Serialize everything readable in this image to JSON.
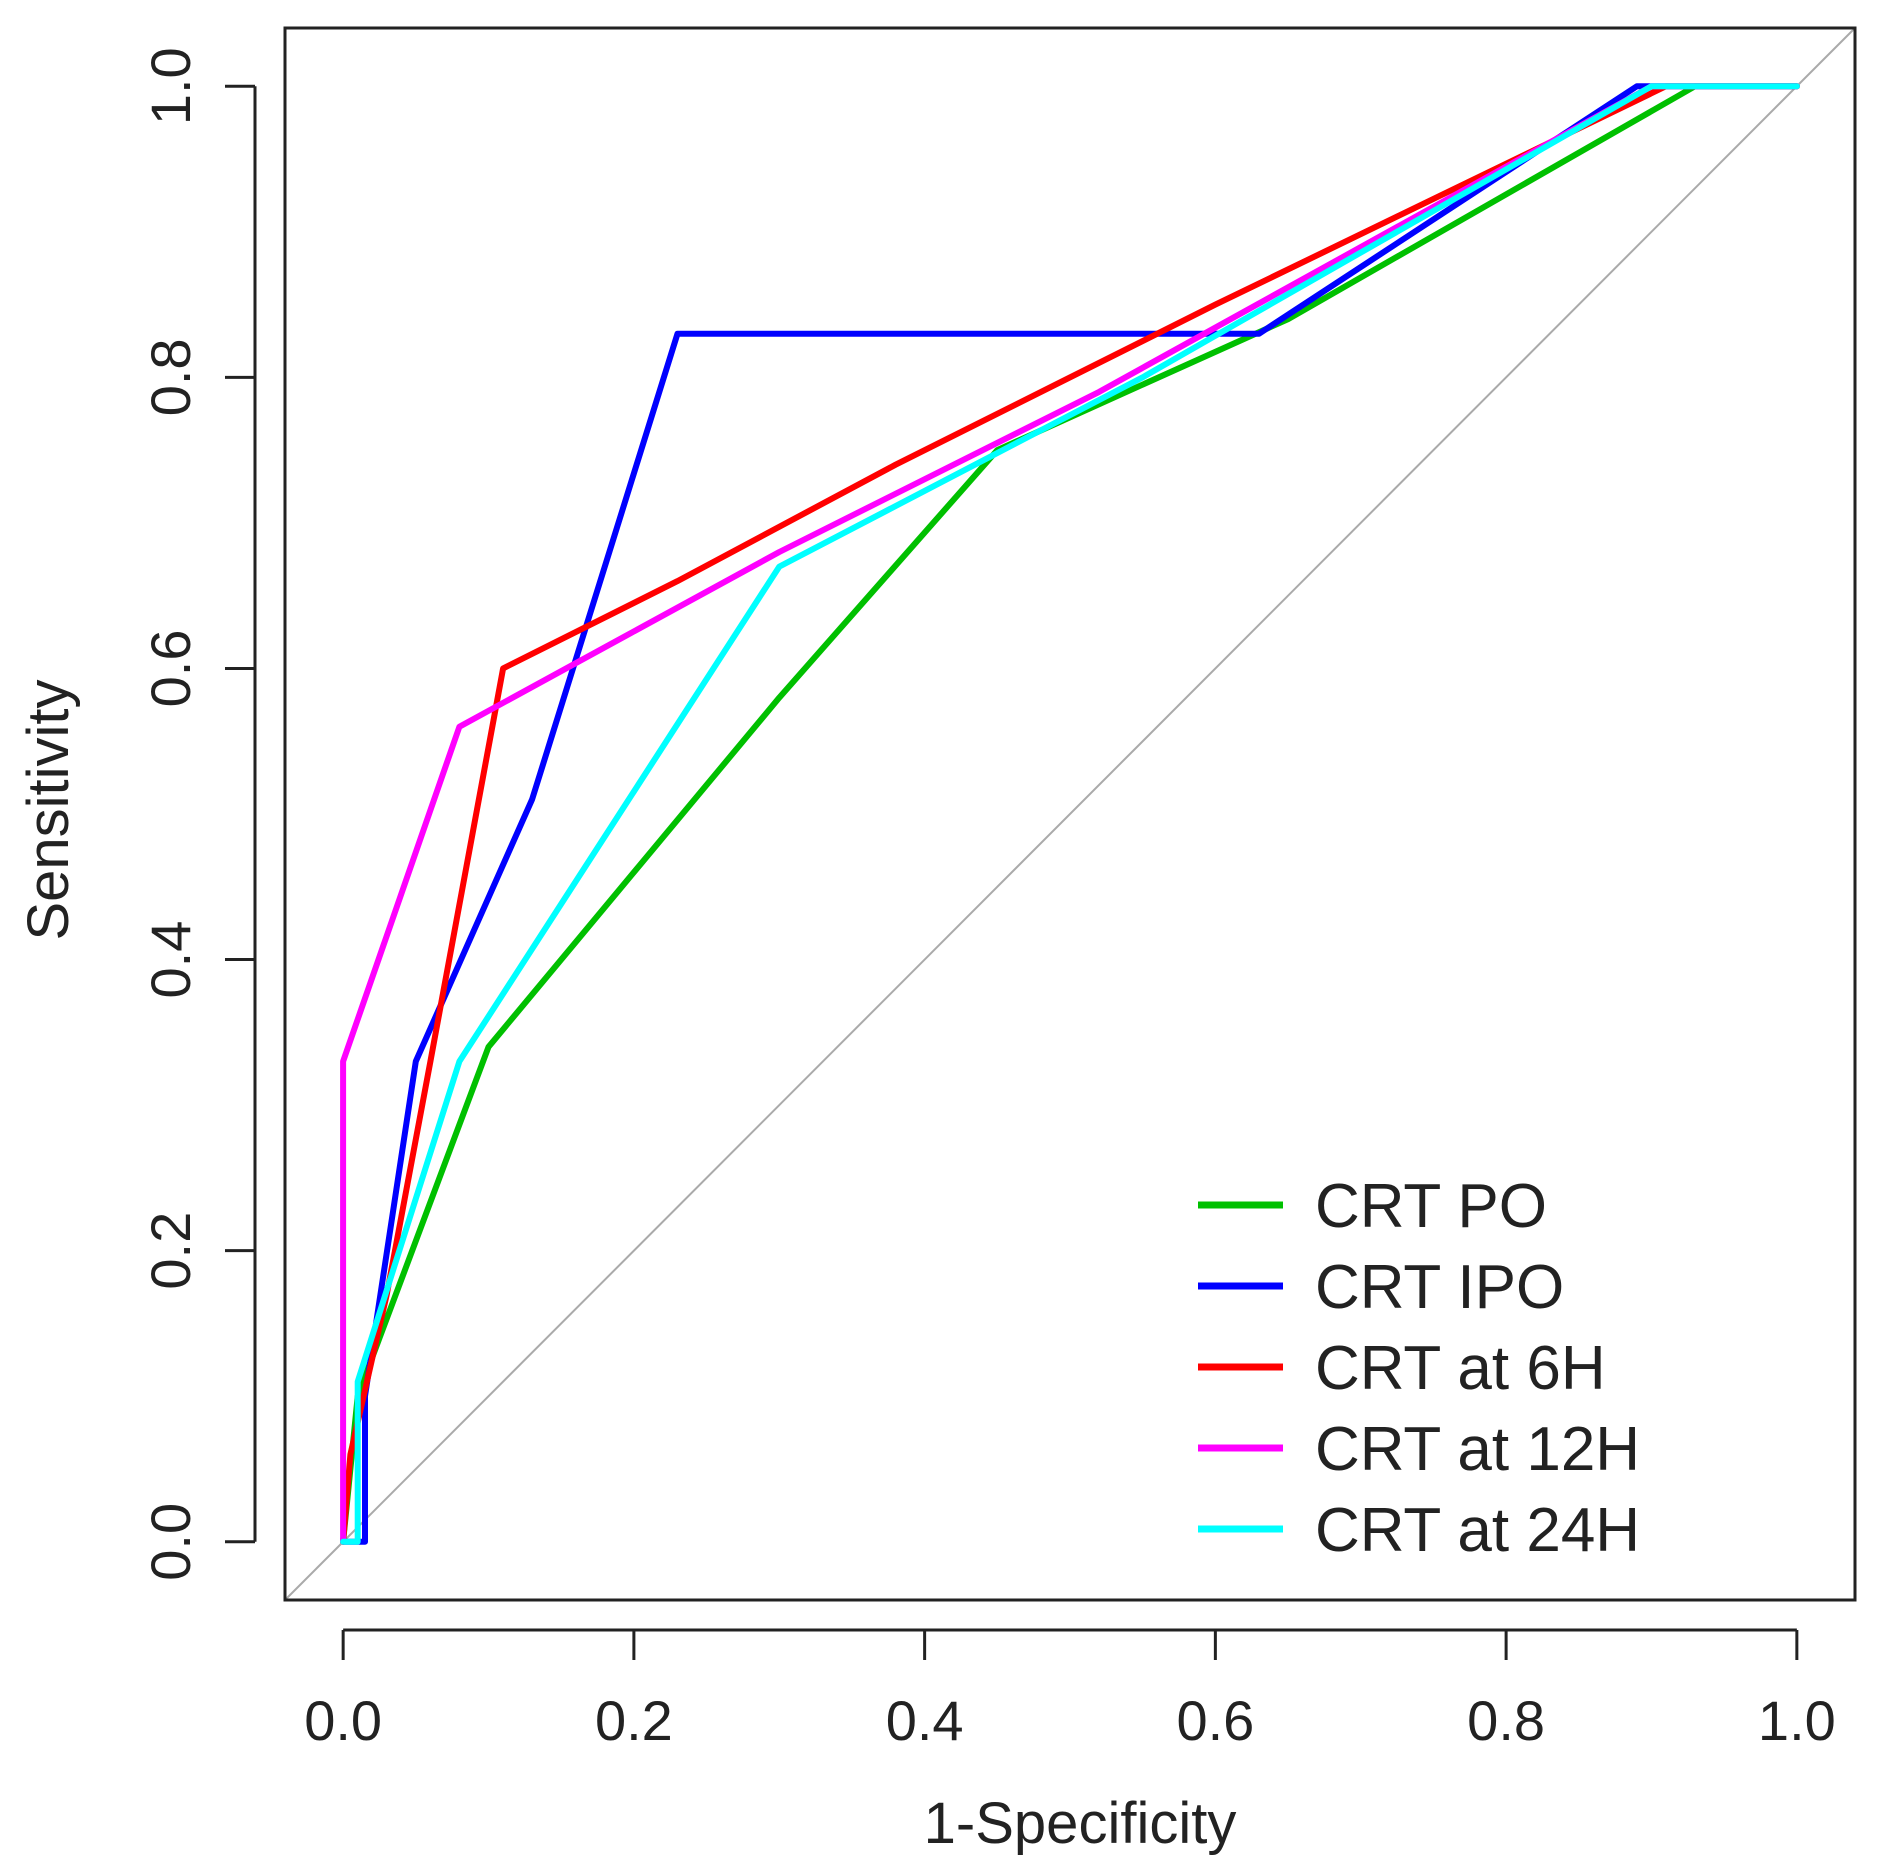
{
  "chart_data": {
    "type": "line",
    "title": "",
    "xlabel": "1-Specificity",
    "ylabel": "Sensitivity",
    "xlim": [
      -0.04,
      1.04
    ],
    "ylim": [
      -0.04,
      1.04
    ],
    "x_ticks": [
      0.0,
      0.2,
      0.4,
      0.6,
      0.8,
      1.0
    ],
    "y_ticks": [
      0.0,
      0.2,
      0.4,
      0.6,
      0.8,
      1.0
    ],
    "x_tick_labels": [
      "0.0",
      "0.2",
      "0.4",
      "0.6",
      "0.8",
      "1.0"
    ],
    "y_tick_labels": [
      "0.0",
      "0.2",
      "0.4",
      "0.6",
      "0.8",
      "1.0"
    ],
    "grid": false,
    "legend_position": "bottom-right",
    "reference_line": {
      "x": [
        0,
        1
      ],
      "y": [
        0,
        1
      ],
      "color": "#aaaaaa"
    },
    "series": [
      {
        "name": "CRT PO",
        "color": "#00c000",
        "x": [
          0.0,
          0.01,
          0.1,
          0.3,
          0.45,
          0.65,
          0.93,
          1.0
        ],
        "y": [
          0.0,
          0.1,
          0.34,
          0.58,
          0.75,
          0.84,
          1.0,
          1.0
        ]
      },
      {
        "name": "CRT IPO",
        "color": "#0000ff",
        "x": [
          0.0,
          0.015,
          0.015,
          0.05,
          0.13,
          0.23,
          0.63,
          0.89,
          1.0
        ],
        "y": [
          0.0,
          0.0,
          0.1,
          0.33,
          0.51,
          0.83,
          0.83,
          1.0,
          1.0
        ]
      },
      {
        "name": "CRT at 6H",
        "color": "#ff0000",
        "x": [
          0.0,
          0.005,
          0.03,
          0.06,
          0.11,
          0.23,
          0.38,
          0.6,
          0.91,
          1.0
        ],
        "y": [
          0.0,
          0.06,
          0.17,
          0.33,
          0.6,
          0.66,
          0.74,
          0.85,
          1.0,
          1.0
        ]
      },
      {
        "name": "CRT at 12H",
        "color": "#ff00ff",
        "x": [
          0.0,
          0.0,
          0.08,
          0.3,
          0.52,
          0.9,
          1.0
        ],
        "y": [
          0.0,
          0.33,
          0.56,
          0.68,
          0.79,
          1.0,
          1.0
        ]
      },
      {
        "name": "CRT at 24H",
        "color": "#00ffff",
        "x": [
          0.0,
          0.01,
          0.01,
          0.08,
          0.3,
          0.55,
          0.9,
          1.0
        ],
        "y": [
          0.0,
          0.0,
          0.11,
          0.33,
          0.67,
          0.8,
          1.0,
          1.0
        ]
      }
    ]
  }
}
